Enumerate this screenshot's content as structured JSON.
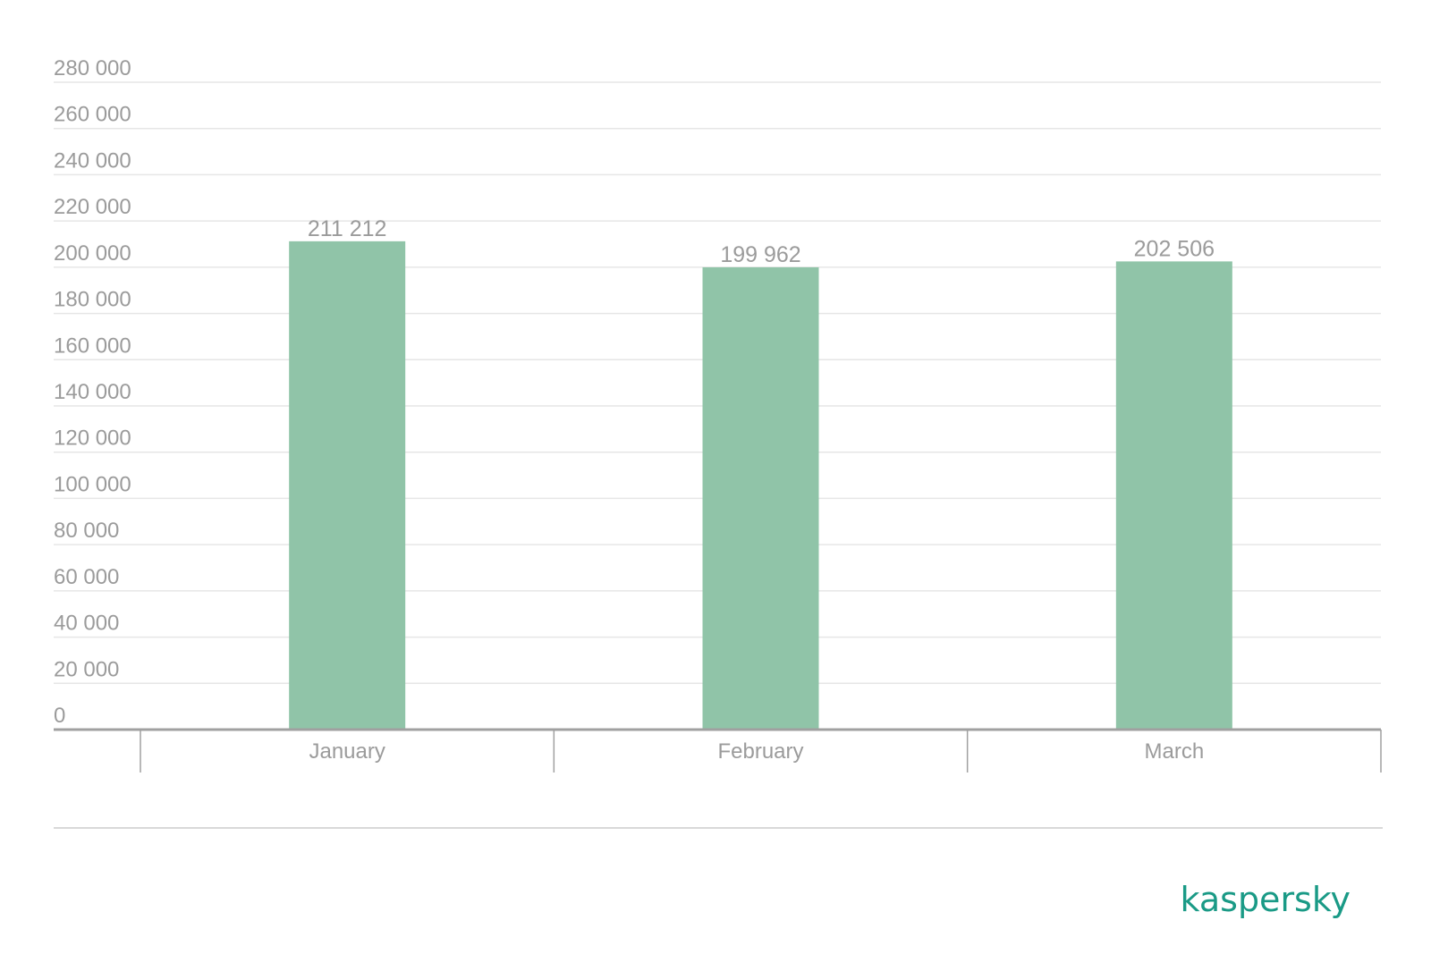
{
  "chart_data": {
    "type": "bar",
    "categories": [
      "January",
      "February",
      "March"
    ],
    "values": [
      211212,
      199962,
      202506
    ],
    "data_labels": [
      "211 212",
      "199 962",
      "202 506"
    ],
    "y_ticks": [
      0,
      20000,
      40000,
      60000,
      80000,
      100000,
      120000,
      140000,
      160000,
      180000,
      200000,
      220000,
      240000,
      260000,
      280000
    ],
    "y_tick_labels": [
      "0",
      "20 000",
      "40 000",
      "60 000",
      "80 000",
      "100 000",
      "120 000",
      "140 000",
      "160 000",
      "180 000",
      "200 000",
      "220 000",
      "240 000",
      "260 000",
      "280 000"
    ],
    "ylim": [
      0,
      280000
    ],
    "grid": true,
    "legend": "none",
    "bar_color": "#90c4a8"
  },
  "branding": {
    "logo": "kaspersky",
    "logo_color": "#1a9a86"
  }
}
